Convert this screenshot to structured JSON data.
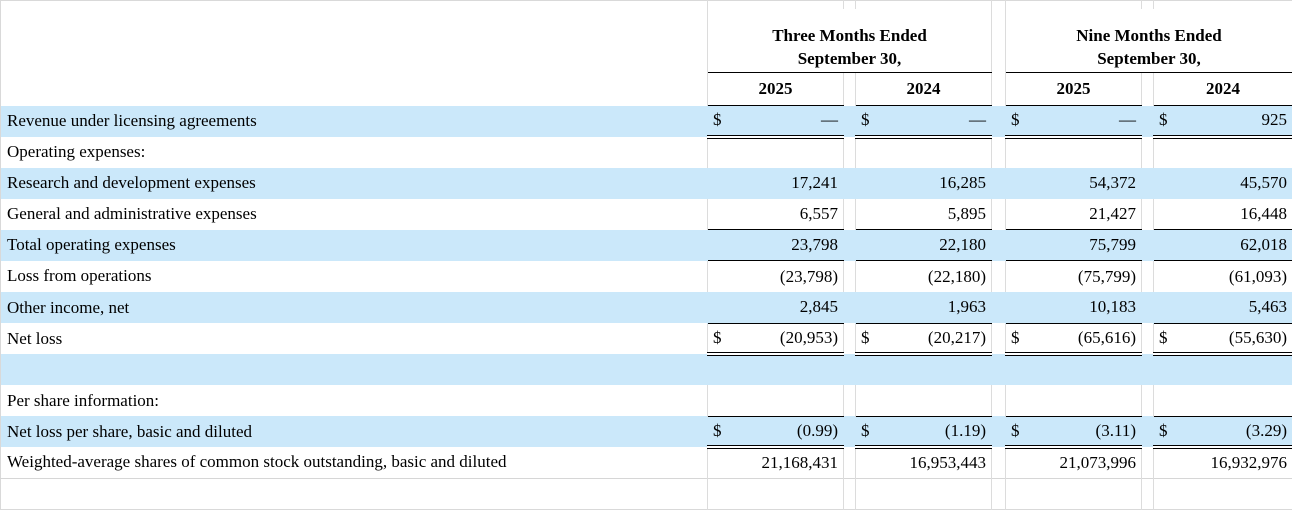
{
  "table": {
    "currency_symbol": "$",
    "groups": [
      {
        "title": "Three Months Ended",
        "subtitle": "September 30,",
        "years": [
          "2025",
          "2024"
        ]
      },
      {
        "title": "Nine Months Ended",
        "subtitle": "September 30,",
        "years": [
          "2025",
          "2024"
        ]
      }
    ],
    "rows": [
      {
        "label": "Revenue under licensing agreements",
        "values": [
          "—",
          "—",
          "—",
          "925"
        ]
      },
      {
        "label": "Operating expenses:",
        "values": [
          "",
          "",
          "",
          ""
        ]
      },
      {
        "label": "Research and development expenses",
        "values": [
          "17,241",
          "16,285",
          "54,372",
          "45,570"
        ]
      },
      {
        "label": "General and administrative expenses",
        "values": [
          "6,557",
          "5,895",
          "21,427",
          "16,448"
        ]
      },
      {
        "label": "Total operating expenses",
        "values": [
          "23,798",
          "22,180",
          "75,799",
          "62,018"
        ]
      },
      {
        "label": "Loss from operations",
        "values": [
          "(23,798)",
          "(22,180)",
          "(75,799)",
          "(61,093)"
        ]
      },
      {
        "label": "Other income, net",
        "values": [
          "2,845",
          "1,963",
          "10,183",
          "5,463"
        ]
      },
      {
        "label": "Net loss",
        "values": [
          "(20,953)",
          "(20,217)",
          "(65,616)",
          "(55,630)"
        ]
      },
      {
        "label": "",
        "values": [
          "",
          "",
          "",
          ""
        ]
      },
      {
        "label": "Per share information:",
        "values": [
          "",
          "",
          "",
          ""
        ]
      },
      {
        "label": "Net loss per share, basic and diluted",
        "values": [
          "(0.99)",
          "(1.19)",
          "(3.11)",
          "(3.29)"
        ]
      },
      {
        "label": "Weighted-average shares of common stock outstanding, basic and diluted",
        "values": [
          "21,168,431",
          "16,953,443",
          "21,073,996",
          "16,932,976"
        ]
      },
      {
        "label": "",
        "values": [
          "",
          "",
          "",
          ""
        ]
      }
    ],
    "colors": {
      "row_shade": "#cbe8fa",
      "grid_line": "#dcdcdc",
      "rule_line": "#000000"
    }
  }
}
